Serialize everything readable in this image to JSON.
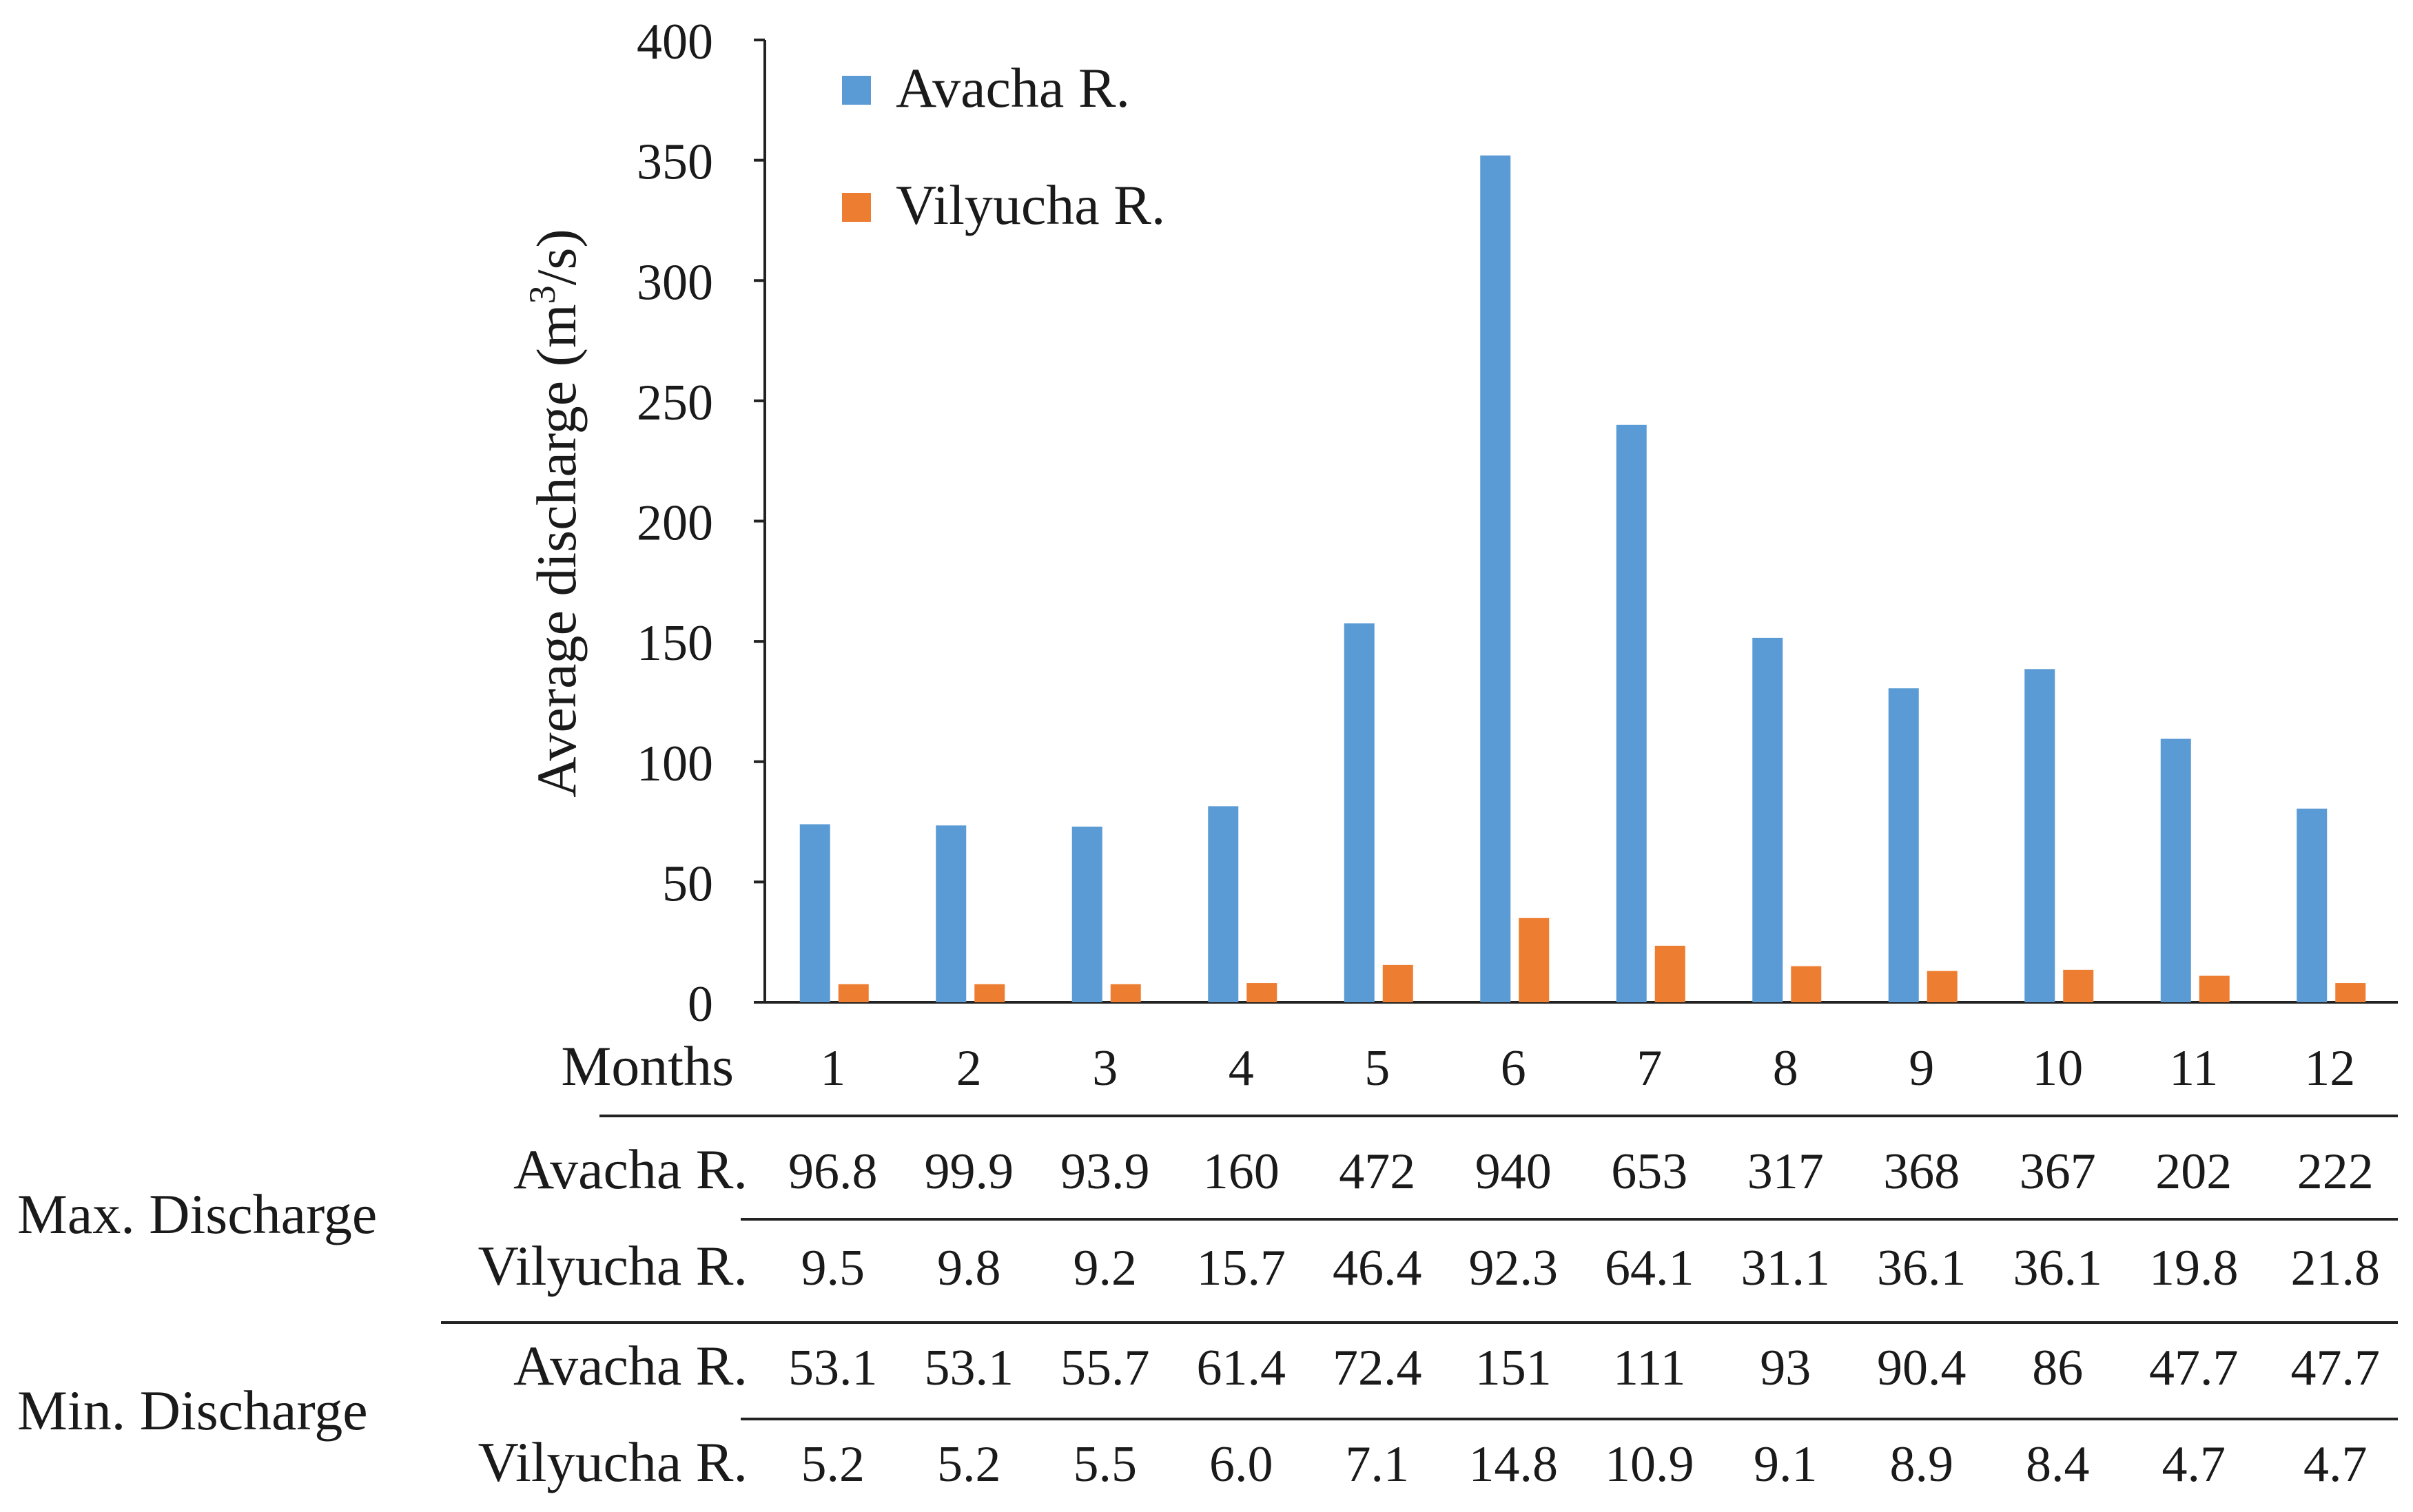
{
  "chart_data": {
    "type": "bar",
    "title": "",
    "xlabel": "Months",
    "ylabel": "Average discharge (m",
    "ylabel_sup": "3",
    "ylabel_tail": "/s)",
    "ylim": [
      0,
      400
    ],
    "yticks": [
      0,
      50,
      100,
      150,
      200,
      250,
      300,
      350,
      400
    ],
    "categories": [
      "1",
      "2",
      "3",
      "4",
      "5",
      "6",
      "7",
      "8",
      "9",
      "10",
      "11",
      "12"
    ],
    "legend_position": "top-left",
    "series": [
      {
        "name": "Avacha R.",
        "color": "#5b9bd5",
        "values": [
          74,
          73.5,
          73,
          81.5,
          157.5,
          352,
          240,
          151.5,
          130.5,
          138.5,
          109.5,
          80.5
        ]
      },
      {
        "name": "Vilyucha R.",
        "color": "#ed7d31",
        "values": [
          7.5,
          7.5,
          7.5,
          8,
          15.5,
          35,
          23.5,
          15,
          13,
          13.5,
          11,
          8
        ]
      }
    ]
  },
  "table": {
    "months_label": "Months",
    "groups": [
      {
        "label": "Max. Discharge",
        "rows": [
          {
            "river": "Avacha R.",
            "values": [
              "96.8",
              "99.9",
              "93.9",
              "160",
              "472",
              "940",
              "653",
              "317",
              "368",
              "367",
              "202",
              "222"
            ]
          },
          {
            "river": "Vilyucha R.",
            "values": [
              "9.5",
              "9.8",
              "9.2",
              "15.7",
              "46.4",
              "92.3",
              "64.1",
              "31.1",
              "36.1",
              "36.1",
              "19.8",
              "21.8"
            ]
          }
        ]
      },
      {
        "label": "Min. Discharge",
        "rows": [
          {
            "river": "Avacha R.",
            "values": [
              "53.1",
              "53.1",
              "55.7",
              "61.4",
              "72.4",
              "151",
              "111",
              "93",
              "90.4",
              "86",
              "47.7",
              "47.7"
            ]
          },
          {
            "river": "Vilyucha R.",
            "values": [
              "5.2",
              "5.2",
              "5.5",
              "6.0",
              "7.1",
              "14.8",
              "10.9",
              "9.1",
              "8.9",
              "8.4",
              "4.7",
              "4.7"
            ]
          }
        ]
      }
    ]
  }
}
